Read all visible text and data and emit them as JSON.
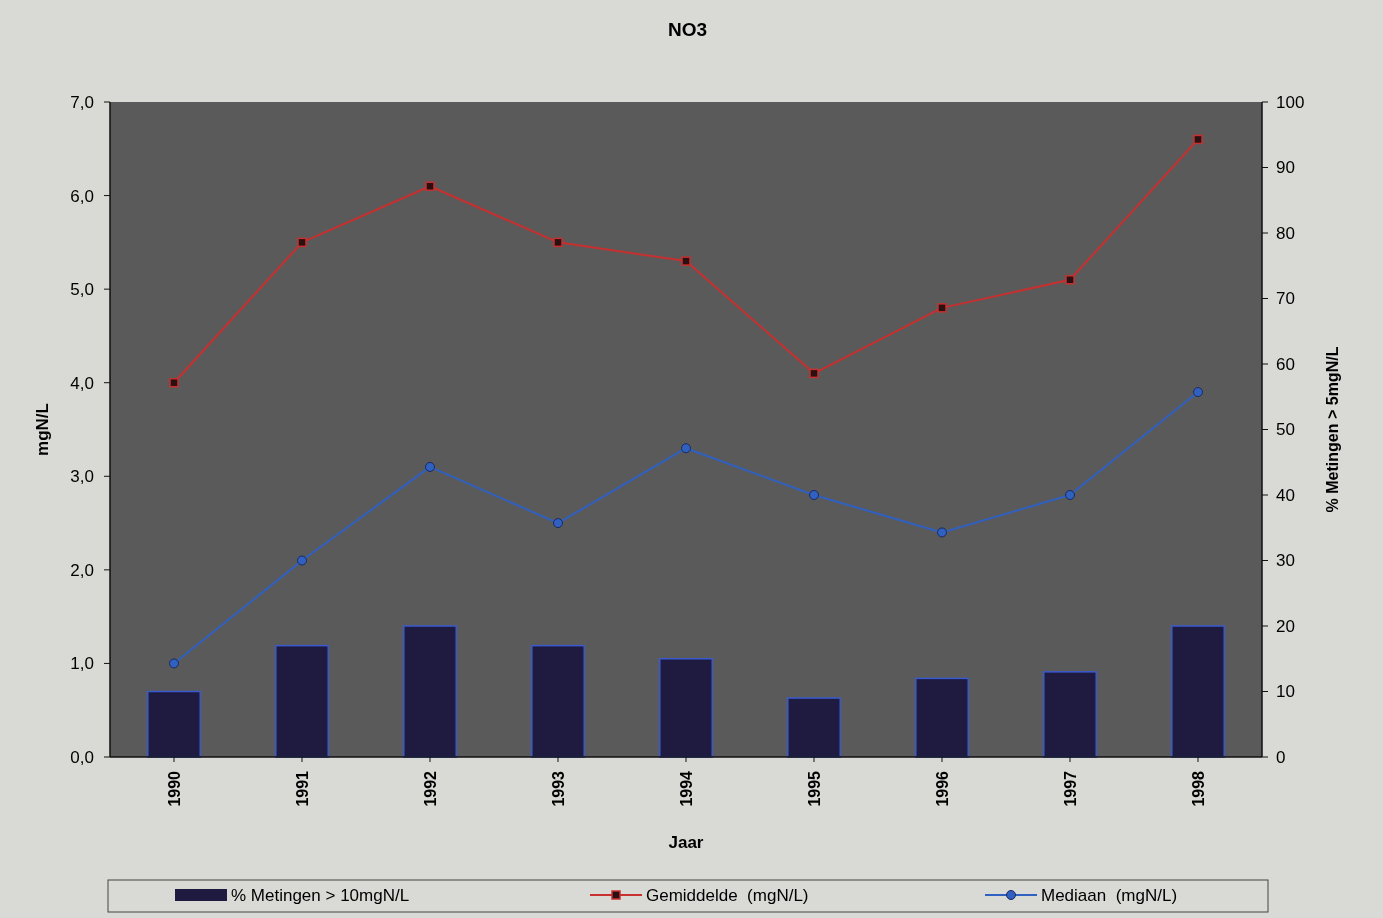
{
  "chart_data": {
    "type": "bar",
    "title": "NO3",
    "xlabel": "Jaar",
    "ylabel": "mgN/L",
    "y2label": "% Metingen > 5mgN/L",
    "categories": [
      "1990",
      "1991",
      "1992",
      "1993",
      "1994",
      "1995",
      "1996",
      "1997",
      "1998"
    ],
    "series": [
      {
        "name": "% Metingen > 10mgN/L",
        "axis": "y2",
        "color": "#1e1a40",
        "values": [
          10,
          17,
          20,
          17,
          15,
          9,
          12,
          13,
          20
        ]
      },
      {
        "name": "Gemiddelde  (mgN/L)",
        "type": "line",
        "axis": "y",
        "color": "#c83030",
        "marker": "square",
        "values": [
          4.0,
          5.5,
          6.1,
          5.5,
          5.3,
          4.1,
          4.8,
          5.1,
          6.6
        ]
      },
      {
        "name": "Mediaan  (mgN/L)",
        "type": "line",
        "axis": "y",
        "color": "#3060c0",
        "marker": "circle",
        "values": [
          1.0,
          2.1,
          3.1,
          2.5,
          3.3,
          2.8,
          2.4,
          2.8,
          3.9
        ]
      }
    ],
    "ylim": [
      0,
      7
    ],
    "yticks": [
      {
        "value": 0,
        "label": "0,0"
      },
      {
        "value": 1,
        "label": "1,0"
      },
      {
        "value": 2,
        "label": "2,0"
      },
      {
        "value": 3,
        "label": "3,0"
      },
      {
        "value": 4,
        "label": "4,0"
      },
      {
        "value": 5,
        "label": "5,0"
      },
      {
        "value": 6,
        "label": "6,0"
      },
      {
        "value": 7,
        "label": "7,0"
      }
    ],
    "y2lim": [
      0,
      100
    ],
    "y2ticks": [
      0,
      10,
      20,
      30,
      40,
      50,
      60,
      70,
      80,
      90,
      100
    ],
    "legend": "bottom",
    "grid": false,
    "line_style": "solid"
  }
}
